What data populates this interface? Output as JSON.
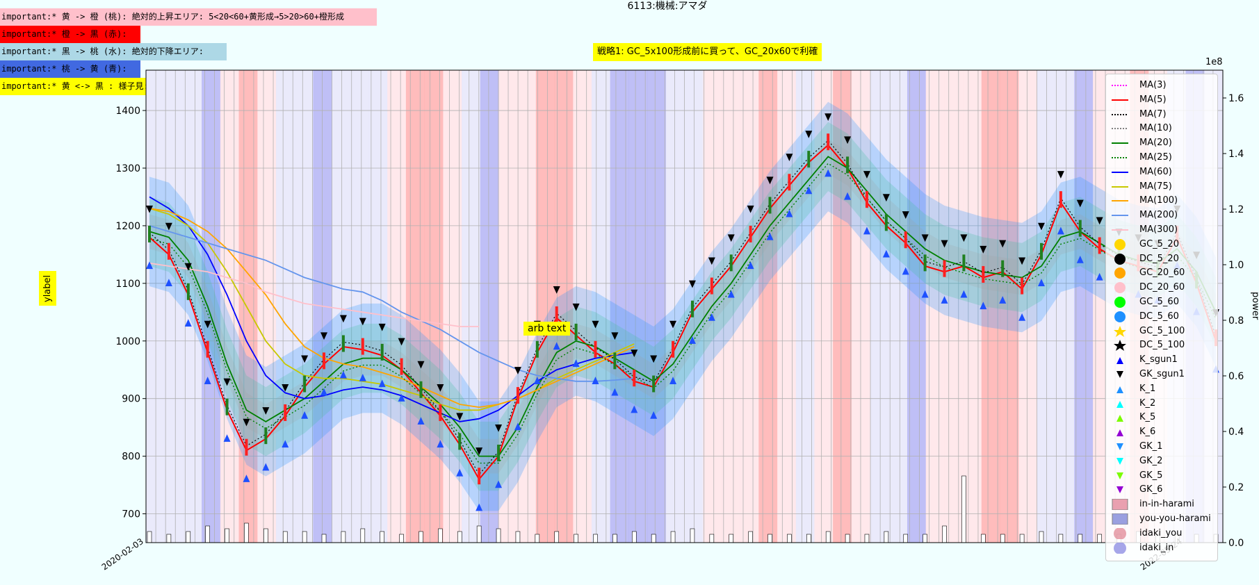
{
  "notes": [
    {
      "text": "important:* 黄 -> 橙 (桃): 絶対的上昇エリア: 5<20<60+黄形成→5>20>60+橙形成",
      "bg": "#ffc0cb",
      "width": 542
    },
    {
      "text": "important:* 橙 -> 黒 (赤):",
      "bg": "#ff0000",
      "width": 202
    },
    {
      "text": "important:* 黒 -> 桃 (水): 絶対的下降エリア:",
      "bg": "#add8e6",
      "width": 326
    },
    {
      "text": "important:* 桃 -> 黄 (青):",
      "bg": "#4169e1",
      "width": 202
    },
    {
      "text": "important:* 黄 <-> 黒 : 様子見:",
      "bg": "#ffff00",
      "width": 230
    }
  ],
  "title": "6113:機械:アマダ",
  "strategy_text": "戦略1: GC_5x100形成前に買って、GC_20x60で利確",
  "ylabel": "ylabel",
  "right_label": "power",
  "right_exponent": "1e8",
  "annotation": "arb text",
  "legend": [
    {
      "label": "MA(3)",
      "kind": "line",
      "color": "#ff00ff",
      "dash": "2,2"
    },
    {
      "label": "MA(5)",
      "kind": "line",
      "color": "#ff0000",
      "dash": ""
    },
    {
      "label": "MA(7)",
      "kind": "line",
      "color": "#000000",
      "dash": "2,2"
    },
    {
      "label": "MA(10)",
      "kind": "line",
      "color": "#808080",
      "dash": "2,2"
    },
    {
      "label": "MA(20)",
      "kind": "line",
      "color": "#008000",
      "dash": ""
    },
    {
      "label": "MA(25)",
      "kind": "line",
      "color": "#008000",
      "dash": "2,2"
    },
    {
      "label": "MA(60)",
      "kind": "line",
      "color": "#0000ff",
      "dash": ""
    },
    {
      "label": "MA(75)",
      "kind": "line",
      "color": "#c8c800",
      "dash": ""
    },
    {
      "label": "MA(100)",
      "kind": "line",
      "color": "#ffa500",
      "dash": ""
    },
    {
      "label": "MA(200)",
      "kind": "line",
      "color": "#6495ed",
      "dash": ""
    },
    {
      "label": "MA(300)",
      "kind": "line",
      "color": "#ffc0cb",
      "dash": ""
    },
    {
      "label": "GC_5_20",
      "kind": "circle",
      "color": "#ffd700"
    },
    {
      "label": "DC_5_20",
      "kind": "circle",
      "color": "#000000"
    },
    {
      "label": "GC_20_60",
      "kind": "circle",
      "color": "#ffa500"
    },
    {
      "label": "DC_20_60",
      "kind": "circle",
      "color": "#ffc0cb"
    },
    {
      "label": "GC_5_60",
      "kind": "circle",
      "color": "#00ff00"
    },
    {
      "label": "DC_5_60",
      "kind": "circle",
      "color": "#1e90ff"
    },
    {
      "label": "GC_5_100",
      "kind": "star",
      "color": "#ffd700"
    },
    {
      "label": "DC_5_100",
      "kind": "star",
      "color": "#000000"
    },
    {
      "label": "K_sgun1",
      "kind": "tri-up",
      "color": "#0000ff"
    },
    {
      "label": "GK_sgun1",
      "kind": "tri-down",
      "color": "#000000"
    },
    {
      "label": "K_1",
      "kind": "tri-up",
      "color": "#1e90ff"
    },
    {
      "label": "K_2",
      "kind": "tri-up",
      "color": "#00ffff"
    },
    {
      "label": "K_5",
      "kind": "tri-up",
      "color": "#7cfc00"
    },
    {
      "label": "K_6",
      "kind": "tri-up",
      "color": "#9400d3"
    },
    {
      "label": "GK_1",
      "kind": "tri-down",
      "color": "#1e90ff"
    },
    {
      "label": "GK_2",
      "kind": "tri-down",
      "color": "#00ffff"
    },
    {
      "label": "GK_5",
      "kind": "tri-down",
      "color": "#7cfc00"
    },
    {
      "label": "GK_6",
      "kind": "tri-down",
      "color": "#9400d3"
    },
    {
      "label": "in-in-harami",
      "kind": "box",
      "color": "#e9a0b0"
    },
    {
      "label": "you-you-harami",
      "kind": "box",
      "color": "#9aa0e0"
    },
    {
      "label": "idaki_you",
      "kind": "bigcircle",
      "color": "#e08090"
    },
    {
      "label": "idaki_in",
      "kind": "bigcircle",
      "color": "#8080e0"
    }
  ],
  "chart_data": {
    "type": "line",
    "title": "6113:機械:アマダ",
    "ylabel": "ylabel",
    "ylim": [
      650,
      1470
    ],
    "yticks": [
      700,
      800,
      900,
      1000,
      1100,
      1200,
      1300,
      1400
    ],
    "y2label": "power",
    "y2lim": [
      0,
      1.7
    ],
    "y2ticks": [
      0.0,
      0.2,
      0.4,
      0.6,
      0.8,
      1.0,
      1.2,
      1.4,
      1.6
    ],
    "y2_exponent": "1e8",
    "grid": true,
    "legend_position": "right",
    "x_first_label": "2020-02-03",
    "x_last_label": "2022-05-24",
    "n_points": 56,
    "series": [
      {
        "name": "MA(5)",
        "color": "#ff0000",
        "values": [
          1180,
          1150,
          1080,
          980,
          880,
          810,
          830,
          870,
          920,
          960,
          990,
          985,
          975,
          950,
          910,
          870,
          820,
          760,
          800,
          900,
          980,
          1040,
          1010,
          980,
          960,
          930,
          920,
          980,
          1050,
          1090,
          1130,
          1180,
          1230,
          1270,
          1310,
          1340,
          1300,
          1240,
          1200,
          1170,
          1130,
          1120,
          1130,
          1110,
          1120,
          1090,
          1150,
          1240,
          1190,
          1160,
          1140,
          1130,
          1120,
          1180,
          1100,
          1000
        ]
      },
      {
        "name": "MA(20)",
        "color": "#008000",
        "values": [
          1190,
          1180,
          1140,
          1060,
          960,
          880,
          860,
          880,
          900,
          930,
          960,
          970,
          970,
          950,
          920,
          890,
          850,
          800,
          800,
          850,
          920,
          980,
          1000,
          990,
          970,
          950,
          930,
          960,
          1010,
          1060,
          1100,
          1150,
          1200,
          1240,
          1280,
          1320,
          1300,
          1260,
          1220,
          1190,
          1160,
          1140,
          1130,
          1120,
          1115,
          1110,
          1130,
          1180,
          1190,
          1170,
          1150,
          1140,
          1135,
          1160,
          1120,
          1050
        ]
      },
      {
        "name": "MA(60)",
        "color": "#0000ff",
        "values": [
          1250,
          1230,
          1200,
          1150,
          1080,
          1000,
          940,
          910,
          900,
          905,
          915,
          920,
          915,
          905,
          890,
          875,
          860,
          865,
          880,
          905,
          930,
          950,
          960,
          970,
          975,
          980
        ]
      },
      {
        "name": "MA(75)",
        "color": "#c8c800",
        "values": [
          1230,
          1220,
          1200,
          1170,
          1120,
          1060,
          1000,
          960,
          940,
          935,
          935,
          930,
          925,
          915,
          905,
          890,
          880,
          880,
          890,
          900,
          915,
          935,
          950,
          965,
          980,
          995
        ]
      },
      {
        "name": "MA(100)",
        "color": "#ffa500",
        "values": [
          1230,
          1225,
          1210,
          1190,
          1160,
          1120,
          1080,
          1030,
          990,
          970,
          960,
          955,
          945,
          935,
          920,
          905,
          890,
          885,
          890,
          900,
          915,
          930,
          945,
          960,
          975,
          990
        ]
      },
      {
        "name": "MA(200)",
        "color": "#6495ed",
        "values": [
          1200,
          1190,
          1180,
          1170,
          1160,
          1150,
          1140,
          1125,
          1110,
          1100,
          1090,
          1085,
          1070,
          1050,
          1035,
          1020,
          1000,
          980,
          965,
          950,
          940,
          935,
          930,
          930,
          932,
          935
        ]
      },
      {
        "name": "MA(300)",
        "color": "#ffc0cb",
        "values": [
          1135,
          1130,
          1125,
          1120,
          1110,
          1100,
          1085,
          1075,
          1065,
          1060,
          1055,
          1050,
          1045,
          1040,
          1035,
          1030,
          1025,
          1025
        ]
      }
    ],
    "volume": [
      0.04,
      0.03,
      0.04,
      0.06,
      0.05,
      0.07,
      0.05,
      0.04,
      0.04,
      0.03,
      0.04,
      0.05,
      0.04,
      0.03,
      0.04,
      0.05,
      0.04,
      0.06,
      0.05,
      0.04,
      0.03,
      0.04,
      0.03,
      0.03,
      0.03,
      0.04,
      0.03,
      0.04,
      0.05,
      0.03,
      0.03,
      0.04,
      0.03,
      0.03,
      0.03,
      0.04,
      0.03,
      0.03,
      0.04,
      0.03,
      0.03,
      0.06,
      0.24,
      0.03,
      0.03,
      0.03,
      0.04,
      0.03,
      0.03,
      0.03,
      0.03,
      0.04,
      0.03,
      0.03,
      0.03,
      0.03
    ]
  }
}
